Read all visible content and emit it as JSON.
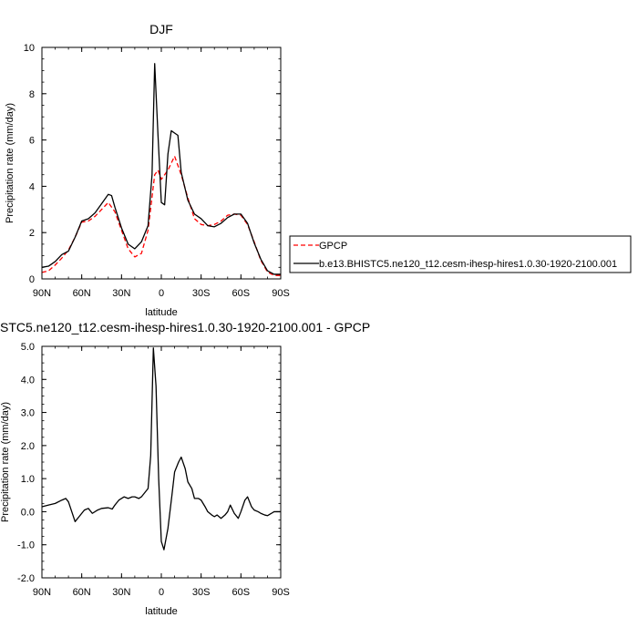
{
  "chart_data": [
    {
      "type": "line",
      "title": "DJF",
      "xlabel": "latitude",
      "ylabel": "Precipitation rate (mm/day)",
      "xlim": [
        90,
        -90
      ],
      "ylim": [
        0,
        10
      ],
      "x_ticks": [
        90,
        60,
        30,
        0,
        -30,
        -60,
        -90
      ],
      "x_tick_labels": [
        "90N",
        "60N",
        "30N",
        "0",
        "30S",
        "60S",
        "90S"
      ],
      "y_ticks": [
        0,
        2,
        4,
        6,
        8,
        10
      ],
      "y_tick_labels": [
        "0",
        "2",
        "4",
        "6",
        "8",
        "10"
      ],
      "legend_position": "right",
      "series": [
        {
          "name": "GPCP",
          "color": "#ff0000",
          "dash": "dashed",
          "x": [
            90,
            85,
            80,
            75,
            70,
            65,
            60,
            55,
            50,
            45,
            40,
            35,
            30,
            25,
            20,
            15,
            10,
            5,
            2.5,
            0,
            -5,
            -10,
            -15,
            -20,
            -25,
            -30,
            -35,
            -40,
            -45,
            -50,
            -55,
            -60,
            -65,
            -70,
            -75,
            -80,
            -85,
            -90
          ],
          "values": [
            0.28,
            0.35,
            0.6,
            0.9,
            1.25,
            1.8,
            2.45,
            2.5,
            2.7,
            3.0,
            3.3,
            2.9,
            2.1,
            1.3,
            0.95,
            1.1,
            2.1,
            4.5,
            4.7,
            4.3,
            4.7,
            5.3,
            4.5,
            3.5,
            2.6,
            2.35,
            2.3,
            2.35,
            2.5,
            2.75,
            2.8,
            2.75,
            2.35,
            1.6,
            0.8,
            0.3,
            0.15,
            0.15
          ]
        },
        {
          "name": "b.e13.BHISTC5.ne120_t12.cesm-ihesp-hires1.0.30-1920-2100.001",
          "color": "#000000",
          "dash": "solid",
          "x": [
            90,
            85,
            80,
            75,
            70,
            65,
            60,
            55,
            50,
            45,
            40,
            37.5,
            35,
            30,
            25,
            20,
            15,
            10,
            7,
            5,
            2.5,
            0,
            -2.5,
            -5,
            -7.5,
            -10,
            -12.5,
            -15,
            -20,
            -25,
            -30,
            -35,
            -40,
            -45,
            -50,
            -55,
            -60,
            -65,
            -70,
            -75,
            -80,
            -85,
            -90
          ],
          "values": [
            0.5,
            0.55,
            0.75,
            1.05,
            1.2,
            1.8,
            2.5,
            2.6,
            2.85,
            3.25,
            3.65,
            3.6,
            3.1,
            2.2,
            1.5,
            1.3,
            1.6,
            2.3,
            4.5,
            9.3,
            6.2,
            3.3,
            3.2,
            5.4,
            6.4,
            6.3,
            6.2,
            4.6,
            3.4,
            2.8,
            2.6,
            2.3,
            2.25,
            2.4,
            2.65,
            2.8,
            2.8,
            2.4,
            1.55,
            0.85,
            0.35,
            0.2,
            0.2
          ]
        }
      ]
    },
    {
      "type": "line",
      "title": "STC5.ne120_t12.cesm-ihesp-hires1.0.30-1920-2100.001 - GPCP",
      "xlabel": "latitude",
      "ylabel": "Precipitation rate (mm/day)",
      "xlim": [
        90,
        -90
      ],
      "ylim": [
        -2,
        5
      ],
      "x_ticks": [
        90,
        60,
        30,
        0,
        -30,
        -60,
        -90
      ],
      "x_tick_labels": [
        "90N",
        "60N",
        "30N",
        "0",
        "30S",
        "60S",
        "90S"
      ],
      "y_ticks": [
        -2,
        -1,
        0,
        1,
        2,
        3,
        4,
        5
      ],
      "y_tick_labels": [
        "-2.0",
        "-1.0",
        "0.0",
        "1.0",
        "2.0",
        "3.0",
        "4.0",
        "5.0"
      ],
      "series": [
        {
          "color": "#000000",
          "dash": "solid",
          "x": [
            90,
            85,
            80,
            75,
            72,
            70,
            65,
            62,
            58,
            55,
            52,
            48,
            45,
            40,
            37,
            35,
            32,
            28,
            25,
            22,
            20,
            17,
            15,
            10,
            8,
            6,
            4,
            2,
            0,
            -2,
            -5,
            -8,
            -10,
            -13,
            -15,
            -18,
            -20,
            -23,
            -25,
            -28,
            -30,
            -33,
            -35,
            -38,
            -40,
            -42,
            -45,
            -48,
            -50,
            -52,
            -55,
            -58,
            -60,
            -63,
            -65,
            -68,
            -70,
            -73,
            -75,
            -78,
            -80,
            -83,
            -85,
            -88,
            -90
          ],
          "values": [
            0.15,
            0.2,
            0.25,
            0.35,
            0.4,
            0.3,
            -0.3,
            -0.15,
            0.05,
            0.1,
            -0.05,
            0.05,
            0.1,
            0.12,
            0.08,
            0.2,
            0.35,
            0.45,
            0.4,
            0.45,
            0.45,
            0.4,
            0.45,
            0.7,
            1.7,
            4.95,
            3.8,
            1.0,
            -0.9,
            -1.15,
            -0.5,
            0.5,
            1.2,
            1.5,
            1.65,
            1.3,
            0.9,
            0.7,
            0.4,
            0.4,
            0.35,
            0.15,
            0.0,
            -0.1,
            -0.15,
            -0.1,
            -0.2,
            -0.1,
            0.0,
            0.2,
            -0.05,
            -0.2,
            0.0,
            0.35,
            0.45,
            0.15,
            0.05,
            0.0,
            -0.05,
            -0.1,
            -0.12,
            -0.05,
            0.0,
            0.0,
            0.0
          ]
        }
      ]
    }
  ]
}
